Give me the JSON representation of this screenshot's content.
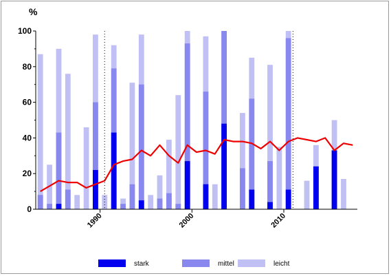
{
  "chart_data": {
    "type": "bar",
    "ylabel": "%",
    "ylim": [
      0,
      100
    ],
    "yticks": [
      0,
      20,
      40,
      60,
      80,
      100
    ],
    "xticks": [
      {
        "year": 1990,
        "label": "1990"
      },
      {
        "year": 2000,
        "label": "2000"
      },
      {
        "year": 2010,
        "label": "2010"
      }
    ],
    "marker_lines": [
      1990,
      2010.5
    ],
    "x": [
      1983,
      1984,
      1985,
      1986,
      1987,
      1988,
      1989,
      1990,
      1991,
      1992,
      1993,
      1994,
      1995,
      1996,
      1997,
      1998,
      1999,
      2000,
      2001,
      2002,
      2003,
      2004,
      2005,
      2006,
      2007,
      2008,
      2009,
      2010,
      2011,
      2012,
      2013,
      2014,
      2015,
      2016,
      2017
    ],
    "series": [
      {
        "name": "stark",
        "color": "#0000ee",
        "values": [
          0,
          0,
          3,
          0,
          0,
          0,
          22,
          0,
          43,
          0,
          0,
          5,
          0,
          0,
          0,
          0,
          27,
          0,
          14,
          0,
          48,
          0,
          0,
          11,
          0,
          4,
          0,
          11,
          0,
          0,
          24,
          0,
          33,
          0,
          0
        ]
      },
      {
        "name": "mittel",
        "color": "#8888ee",
        "values": [
          8,
          3,
          43,
          11,
          0,
          0,
          60,
          0,
          79,
          3,
          14,
          70,
          0,
          6,
          9,
          3,
          93,
          0,
          66,
          0,
          100,
          0,
          23,
          62,
          0,
          27,
          0,
          96,
          0,
          0,
          24,
          0,
          33,
          0,
          0
        ]
      },
      {
        "name": "leicht",
        "color": "#c0c0f4",
        "values": [
          87,
          25,
          90,
          76,
          8,
          46,
          98,
          8,
          92,
          6,
          71,
          98,
          8,
          19,
          39,
          64,
          100,
          0,
          97,
          14,
          100,
          0,
          54,
          85,
          0,
          81,
          35,
          100,
          0,
          16,
          36,
          0,
          50,
          17,
          0
        ]
      },
      {
        "name": "",
        "type": "line",
        "color": "#ee0000",
        "values": [
          10,
          13,
          16,
          15,
          15,
          12,
          14,
          16,
          25,
          27,
          28,
          33,
          30,
          36,
          30,
          26,
          36,
          32,
          33,
          31,
          39,
          38,
          38,
          37,
          34,
          38,
          33,
          38,
          40,
          39,
          38,
          40,
          33,
          37,
          36
        ]
      }
    ],
    "legend": {
      "placement": "bottom-center"
    }
  }
}
